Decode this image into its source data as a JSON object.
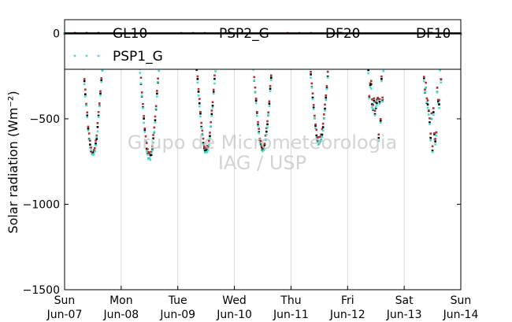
{
  "chart_data": {
    "type": "scatter",
    "ylabel": "Solar radiation ($Wm^{-2}$)",
    "ylabel_display": "Solar radiation (Wm⁻²)",
    "ylim": [
      -1500,
      80
    ],
    "yticks": [
      0,
      -500,
      -1000,
      -1500
    ],
    "ytick_labels": [
      "0",
      "−500",
      "−1000",
      "−1500"
    ],
    "xlim": [
      "2015-06-07",
      "2015-06-14"
    ],
    "xticks": [
      "2015-06-07",
      "2015-06-08",
      "2015-06-09",
      "2015-06-10",
      "2015-06-11",
      "2015-06-12",
      "2015-06-13",
      "2015-06-14"
    ],
    "xtick_labels": [
      [
        "Sun",
        "Jun-07"
      ],
      [
        "Mon",
        "Jun-08"
      ],
      [
        "Tue",
        "Jun-09"
      ],
      [
        "Wed",
        "Jun-10"
      ],
      [
        "Thu",
        "Jun-11"
      ],
      [
        "Fri",
        "Jun-12"
      ],
      [
        "Sat",
        "Jun-13"
      ],
      [
        "Sun",
        "Jun-14"
      ]
    ],
    "grid": "vertical",
    "legend": "top",
    "watermark": [
      "Grupo de Micrometeorologia",
      "IAG / USP"
    ],
    "daily_min": [
      -710,
      -730,
      -695,
      -680,
      -640,
      -690,
      -750
    ],
    "series": [
      {
        "name": "GL10",
        "color": "#000000",
        "marker": "dot",
        "role": "reference",
        "offset": 0
      },
      {
        "name": "PSP2_G",
        "color": "#b03030",
        "marker": "dot",
        "role": "reference",
        "offset": 18
      },
      {
        "name": "DF20",
        "color": "#cc2222",
        "marker": "dot",
        "role": "zero"
      },
      {
        "name": "DF10",
        "color": "#f08080",
        "marker": "line",
        "role": "zero"
      },
      {
        "name": "PSP1_G",
        "color": "#40e0d0",
        "marker": "dot",
        "role": "reference",
        "offset": -10
      }
    ]
  }
}
